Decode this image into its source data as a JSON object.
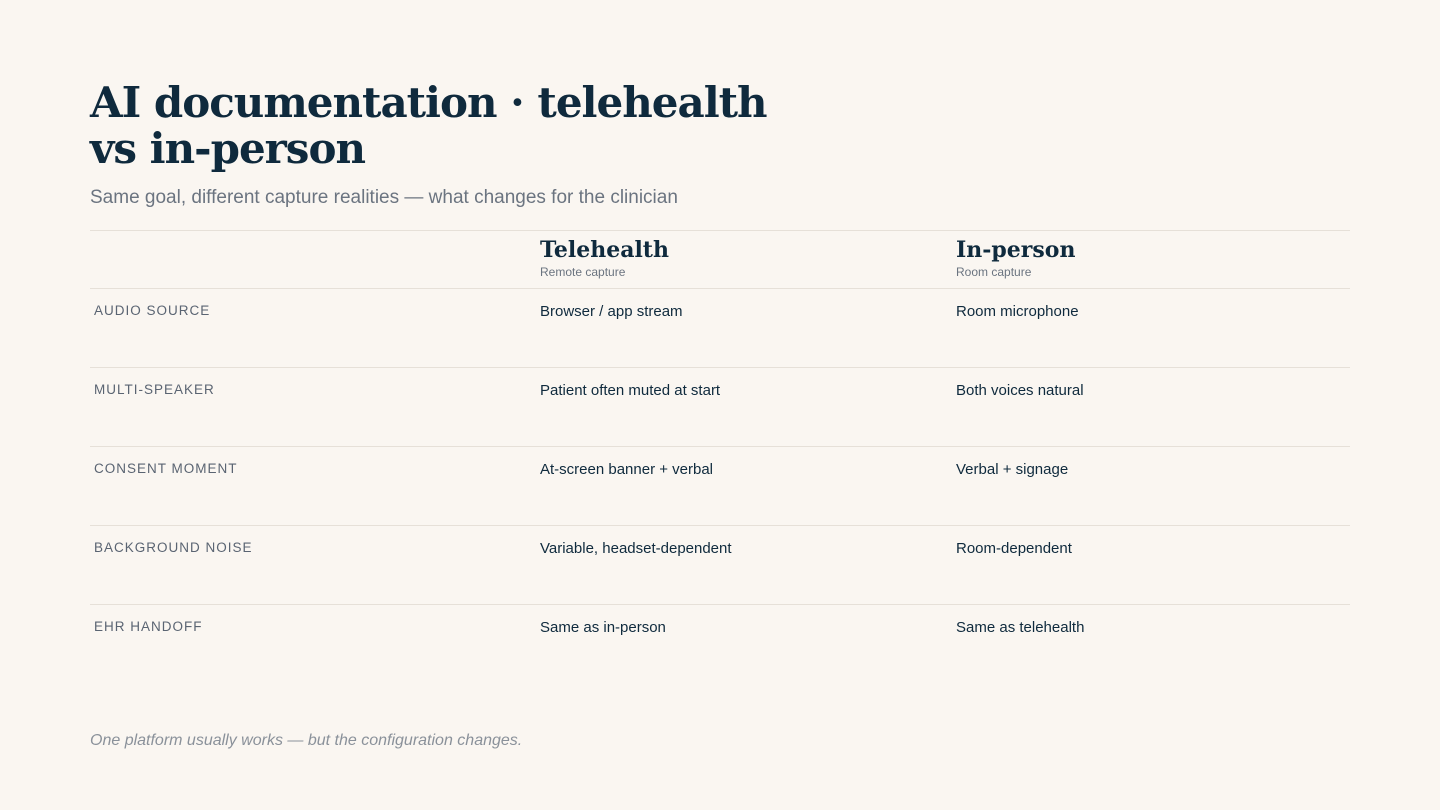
{
  "header": {
    "title": "AI documentation · telehealth vs in-person",
    "subtitle": "Same goal, different capture realities — what changes for the clinician"
  },
  "table": {
    "columns": [
      {
        "title": "Telehealth",
        "subtitle": "Remote capture"
      },
      {
        "title": "In-person",
        "subtitle": "Room capture"
      }
    ],
    "rows": [
      [
        "AUDIO SOURCE",
        "Browser / app stream",
        "Room microphone"
      ],
      [
        "MULTI-SPEAKER",
        "Patient often muted at start",
        "Both voices natural"
      ],
      [
        "CONSENT MOMENT",
        "At-screen banner + verbal",
        "Verbal + signage"
      ],
      [
        "BACKGROUND NOISE",
        "Variable, headset-dependent",
        "Room-dependent"
      ],
      [
        "EHR HANDOFF",
        "Same as in-person",
        "Same as telehealth"
      ]
    ]
  },
  "footer": {
    "note": "One platform usually works — but the configuration changes."
  }
}
